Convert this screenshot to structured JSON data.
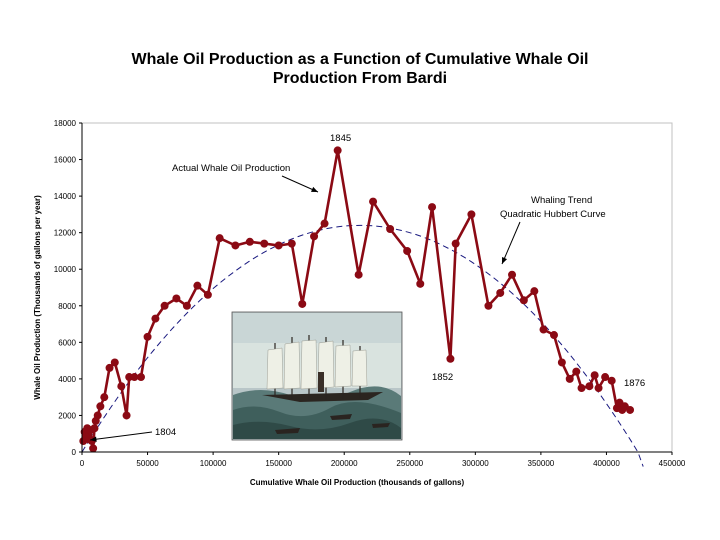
{
  "title_line1": "Whale Oil Production as a Function of Cumulative Whale Oil",
  "title_line2": "Production From Bardi",
  "chart_data": {
    "type": "line",
    "xlabel": "Cumulative Whale Oil Production (thousands of gallons)",
    "ylabel": "Whale Oil Production (Thousands of gallons per year)",
    "xlim": [
      0,
      450000
    ],
    "ylim": [
      0,
      18000
    ],
    "xticks": [
      0,
      50000,
      100000,
      150000,
      200000,
      250000,
      300000,
      350000,
      400000,
      450000
    ],
    "yticks": [
      0,
      2000,
      4000,
      6000,
      8000,
      10000,
      12000,
      14000,
      16000,
      18000
    ],
    "series": [
      {
        "name": "Actual Whale Oil Production",
        "color": "#8b0a14",
        "points": [
          [
            1000,
            600
          ],
          [
            2000,
            1100
          ],
          [
            3000,
            800
          ],
          [
            4000,
            1300
          ],
          [
            5000,
            700
          ],
          [
            6500,
            1200
          ],
          [
            7500,
            600
          ],
          [
            8500,
            200
          ],
          [
            9500,
            1300
          ],
          [
            10500,
            1700
          ],
          [
            12000,
            2000
          ],
          [
            14000,
            2500
          ],
          [
            17000,
            3000
          ],
          [
            21000,
            4600
          ],
          [
            25000,
            4900
          ],
          [
            30000,
            3600
          ],
          [
            34000,
            2000
          ],
          [
            36000,
            4100
          ],
          [
            40000,
            4100
          ],
          [
            45000,
            4100
          ],
          [
            50000,
            6300
          ],
          [
            56000,
            7300
          ],
          [
            63000,
            8000
          ],
          [
            72000,
            8400
          ],
          [
            80000,
            8000
          ],
          [
            88000,
            9100
          ],
          [
            96000,
            8600
          ],
          [
            105000,
            11700
          ],
          [
            117000,
            11300
          ],
          [
            128000,
            11500
          ],
          [
            139000,
            11400
          ],
          [
            150000,
            11300
          ],
          [
            160000,
            11400
          ],
          [
            168000,
            8100
          ],
          [
            177000,
            11800
          ],
          [
            185000,
            12500
          ],
          [
            195000,
            16500
          ],
          [
            211000,
            9700
          ],
          [
            222000,
            13700
          ],
          [
            235000,
            12200
          ],
          [
            248000,
            11000
          ],
          [
            258000,
            9200
          ],
          [
            267000,
            13400
          ],
          [
            281000,
            5100
          ],
          [
            285000,
            11400
          ],
          [
            297000,
            13000
          ],
          [
            310000,
            8000
          ],
          [
            319000,
            8700
          ],
          [
            328000,
            9700
          ],
          [
            337000,
            8300
          ],
          [
            345000,
            8800
          ],
          [
            352000,
            6700
          ],
          [
            360000,
            6400
          ],
          [
            366000,
            4900
          ],
          [
            372000,
            4000
          ],
          [
            377000,
            4400
          ],
          [
            381000,
            3500
          ],
          [
            387000,
            3600
          ],
          [
            391000,
            4200
          ],
          [
            394000,
            3500
          ],
          [
            399000,
            4100
          ],
          [
            404000,
            3900
          ],
          [
            408000,
            2400
          ],
          [
            410000,
            2700
          ],
          [
            412000,
            2300
          ],
          [
            414000,
            2500
          ],
          [
            418000,
            2300
          ]
        ]
      },
      {
        "name": "Whaling Trend Quadratic Hubbert Curve",
        "color": "#1a1a80",
        "equation": "y = 12400 * (1 - ((x - 212000) / 212000)^2)",
        "x_range": [
          0,
          424000
        ]
      }
    ],
    "annotations": {
      "actual": "Actual Whale Oil Production",
      "trend_line1": "Whaling Trend",
      "trend_line2": "Quadratic Hubbert Curve",
      "y1804": "1804",
      "y1845": "1845",
      "y1852": "1852",
      "y1876": "1876"
    }
  },
  "image_caption": "whaling ship at sea"
}
